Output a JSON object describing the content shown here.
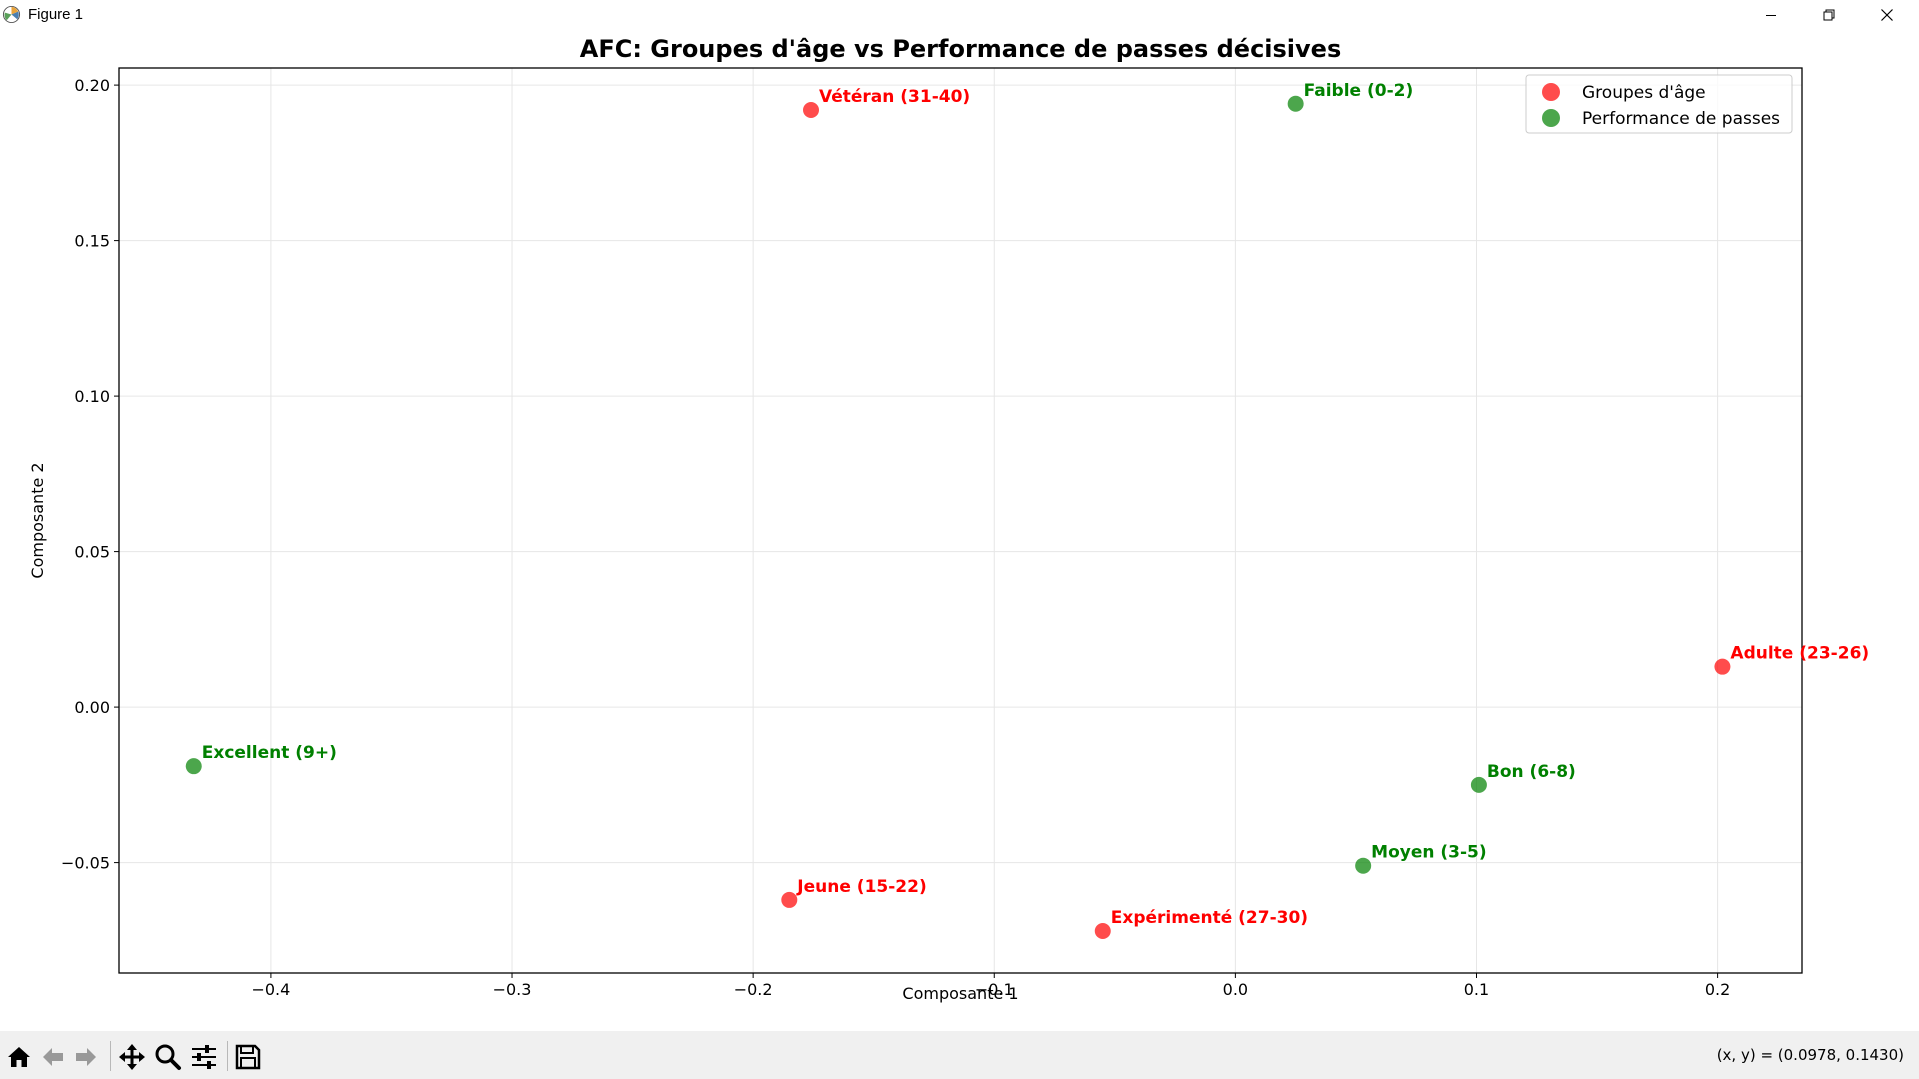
{
  "window": {
    "title": "Figure 1",
    "controls": {
      "minimize": "minimize-icon",
      "restore": "restore-icon",
      "close": "close-icon"
    }
  },
  "toolbar": {
    "tools": [
      "home-icon",
      "back-arrow-icon",
      "forward-arrow-icon",
      "pan-icon",
      "zoom-icon",
      "configure-subplots-icon",
      "save-icon"
    ],
    "coords": "(x, y) = (0.0978, 0.1430)"
  },
  "chart_data": {
    "type": "scatter",
    "title": "AFC: Groupes d'âge vs Performance de passes décisives",
    "xlabel": "Composante 1",
    "ylabel": "Composante 2",
    "xlim": [
      -0.463,
      0.235
    ],
    "ylim": [
      -0.0855,
      0.2055
    ],
    "xticks": [
      -0.4,
      -0.3,
      -0.2,
      -0.1,
      0.0,
      0.1,
      0.2
    ],
    "xtick_labels": [
      "−0.4",
      "−0.3",
      "−0.2",
      "−0.1",
      "0.0",
      "0.1",
      "0.2"
    ],
    "yticks": [
      -0.05,
      0.0,
      0.05,
      0.1,
      0.15,
      0.2
    ],
    "ytick_labels": [
      "−0.05",
      "0.00",
      "0.05",
      "0.10",
      "0.15",
      "0.20"
    ],
    "grid": true,
    "legend_position": "top-right",
    "series": [
      {
        "name": "Groupes d'âge",
        "color": "#ff0000",
        "label_color": "#ff0000",
        "points": [
          {
            "label": "Vétéran (31-40)",
            "x": -0.176,
            "y": 0.192
          },
          {
            "label": "Adulte (23-26)",
            "x": 0.202,
            "y": 0.013
          },
          {
            "label": "Jeune (15-22)",
            "x": -0.185,
            "y": -0.062
          },
          {
            "label": "Expérimenté (27-30)",
            "x": -0.055,
            "y": -0.072
          }
        ]
      },
      {
        "name": "Performance de passes",
        "color": "#008000",
        "label_color": "#008000",
        "points": [
          {
            "label": "Faible (0-2)",
            "x": 0.025,
            "y": 0.194
          },
          {
            "label": "Excellent (9+)",
            "x": -0.432,
            "y": -0.019
          },
          {
            "label": "Bon (6-8)",
            "x": 0.101,
            "y": -0.025
          },
          {
            "label": "Moyen (3-5)",
            "x": 0.053,
            "y": -0.051
          }
        ]
      }
    ]
  }
}
